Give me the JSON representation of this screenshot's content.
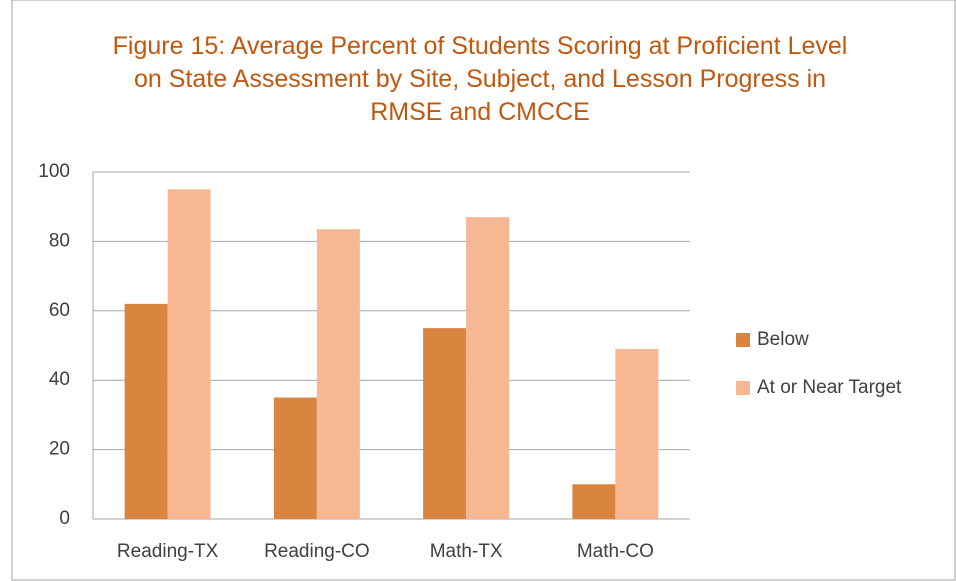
{
  "chart_data": {
    "type": "bar",
    "title": "Figure 15: Average Percent of Students Scoring at Proficient Level on State Assessment by Site, Subject, and Lesson Progress in RMSE and CMCCE",
    "categories": [
      "Reading-TX",
      "Reading-CO",
      "Math-TX",
      "Math-CO"
    ],
    "series": [
      {
        "name": "Below",
        "color": "#d9843f",
        "values": [
          62,
          35,
          55,
          10
        ]
      },
      {
        "name": "At or Near Target",
        "color": "#f8b793",
        "values": [
          95,
          83.5,
          87,
          49
        ]
      }
    ],
    "ylim": [
      0,
      100
    ],
    "yticks": [
      0,
      20,
      40,
      60,
      80,
      100
    ],
    "grid": true,
    "legend": "right"
  }
}
